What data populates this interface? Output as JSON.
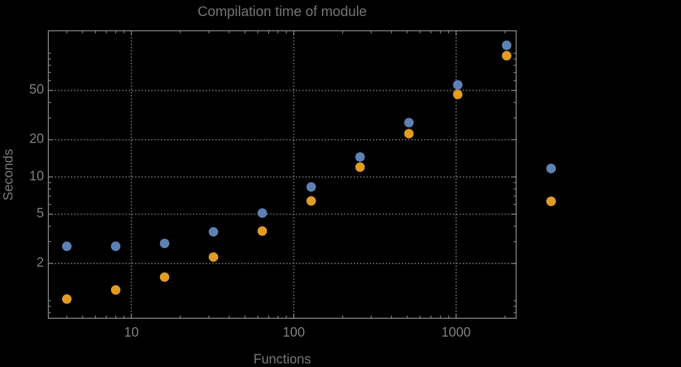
{
  "chart_data": {
    "type": "scatter",
    "title": "Compilation time of module",
    "xlabel": "Functions",
    "ylabel": "Seconds",
    "x_scale": "log",
    "y_scale": "log",
    "xlim": [
      3.08,
      2344
    ],
    "ylim": [
      0.72,
      152
    ],
    "grid": "dotted gridlines at labeled ticks only",
    "x": [
      4,
      8,
      16,
      32,
      64,
      128,
      256,
      512,
      1024,
      2048
    ],
    "series": [
      {
        "name": "series-blue",
        "color": "#5e81b5",
        "values": [
          2.75,
          2.75,
          2.9,
          3.6,
          5.1,
          8.3,
          14.5,
          27.5,
          55.5,
          116
        ]
      },
      {
        "name": "series-orange",
        "color": "#e19c24",
        "values": [
          1.03,
          1.22,
          1.55,
          2.25,
          3.65,
          6.4,
          12,
          22.4,
          46.5,
          95.5
        ]
      }
    ],
    "x_ticks": [
      {
        "value": 10,
        "label": "10"
      },
      {
        "value": 100,
        "label": "100"
      },
      {
        "value": 1000,
        "label": "1000"
      }
    ],
    "y_ticks": [
      {
        "value": 2,
        "label": "2"
      },
      {
        "value": 5,
        "label": "5"
      },
      {
        "value": 10,
        "label": "10"
      },
      {
        "value": 20,
        "label": "20"
      },
      {
        "value": 50,
        "label": "50"
      }
    ],
    "x_minor_ticks": [
      4,
      5,
      6,
      7,
      8,
      9,
      20,
      30,
      40,
      50,
      60,
      70,
      80,
      90,
      200,
      300,
      400,
      500,
      600,
      700,
      800,
      900,
      2000
    ],
    "y_minor_ticks": [
      0.8,
      0.9,
      1,
      3,
      4,
      6,
      7,
      8,
      9,
      30,
      40,
      60,
      70,
      80,
      90,
      100
    ],
    "legend": {
      "position": "outside-right",
      "labels_visible": false,
      "entries": [
        {
          "marker_color": "#5e81b5",
          "label": ""
        },
        {
          "marker_color": "#e19c24",
          "label": ""
        }
      ]
    },
    "colors": {
      "background": "#000000",
      "frame": "#8a8a8a",
      "grid": "#6f6f6f",
      "title_text": "#757575",
      "tick_text": "#818181"
    }
  }
}
